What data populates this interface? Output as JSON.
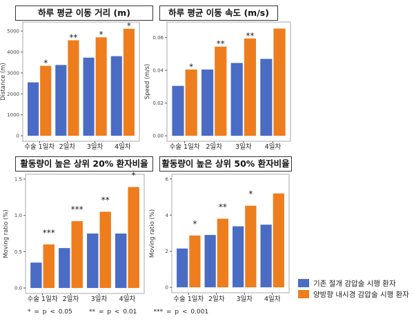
{
  "chart_data": [
    {
      "type": "bar",
      "title": "하루 평균 이동 거리 (m)",
      "ylabel": "Distance (m)",
      "xlabel": "",
      "categories": [
        "수술 1일차",
        "2일차",
        "3일차",
        "4일차"
      ],
      "series": [
        {
          "name": "기존 절개 감압술 시행 환자",
          "values": [
            2550,
            3380,
            3730,
            3800
          ]
        },
        {
          "name": "양방향 내시경 감압술 시행 환자",
          "values": [
            3340,
            4560,
            4700,
            5110
          ]
        }
      ],
      "significance": [
        "*",
        "**",
        "*",
        "*"
      ],
      "yticks": [
        0,
        1000,
        2000,
        3000,
        4000,
        5000
      ],
      "ytick_labels": [
        "0",
        "1000",
        "2000",
        "3000",
        "4000",
        "5000"
      ],
      "ylim": [
        -260,
        5430
      ],
      "grid": false
    },
    {
      "type": "bar",
      "title": "하루 평균 이동 속도 (m/s)",
      "ylabel": "Speed (m/s)",
      "xlabel": "",
      "categories": [
        "수술 1일차",
        "2일차",
        "3일차",
        "4일차"
      ],
      "series": [
        {
          "name": "기존 절개 감압술 시행 환자",
          "values": [
            0.0305,
            0.0405,
            0.0445,
            0.047
          ]
        },
        {
          "name": "양방향 내시경 감압술 시행 환자",
          "values": [
            0.0405,
            0.0545,
            0.0595,
            0.0655
          ]
        }
      ],
      "significance": [
        "*",
        "**",
        "**",
        ""
      ],
      "yticks": [
        0,
        0.02,
        0.04,
        0.06
      ],
      "ytick_labels": [
        "0.00",
        "0.02",
        "0.04",
        "0.06"
      ],
      "ylim": [
        -0.0033,
        0.0695
      ],
      "grid": false
    },
    {
      "type": "bar",
      "title": "활동량이 높은 상위 20% 환자비율",
      "ylabel": "Moving ratio (%)",
      "xlabel": "",
      "categories": [
        "수술 1일차",
        "2일차",
        "3일차",
        "4일차"
      ],
      "series": [
        {
          "name": "기존 절개 감압술 시행 환자",
          "values": [
            0.35,
            0.55,
            0.75,
            0.75
          ]
        },
        {
          "name": "양방향 내시경 감압술 시행 환자",
          "values": [
            0.6,
            0.92,
            1.05,
            1.39
          ]
        }
      ],
      "significance": [
        "***",
        "***",
        "**",
        "*"
      ],
      "yticks": [
        0,
        0.5,
        1.0,
        1.5
      ],
      "ytick_labels": [
        "0.0",
        "0.5",
        "1.0",
        "1.5"
      ],
      "ylim": [
        -0.075,
        1.566
      ],
      "grid": false
    },
    {
      "type": "bar",
      "title": "활동량이 높은 상위 50% 환자비율",
      "ylabel": "Moving ratio (%)",
      "xlabel": "",
      "categories": [
        "수술 1일차",
        "2일차",
        "3일차",
        "4일차"
      ],
      "series": [
        {
          "name": "기존 절개 감압술 시행 환자",
          "values": [
            2.15,
            2.9,
            3.38,
            3.47
          ]
        },
        {
          "name": "양방향 내시경 감압술 시행 환자",
          "values": [
            2.87,
            3.8,
            4.52,
            5.2
          ]
        }
      ],
      "significance": [
        "*",
        "**",
        "*",
        ""
      ],
      "yticks": [
        0,
        2,
        4,
        6
      ],
      "ytick_labels": [
        "0",
        "2",
        "4",
        "6"
      ],
      "ylim": [
        -0.3,
        6.26
      ],
      "grid": false
    }
  ],
  "colors": {
    "control": "#4a6cc4",
    "treatment": "#ee7d1e"
  },
  "legend": {
    "position": "bottom-right",
    "items": [
      "기존 절개 감압술 시행 환자",
      "양방향 내시경 감압술 시행 환자"
    ]
  },
  "footnote": "* = p < 0.05     ** = p < 0.01     *** = p < 0.001"
}
